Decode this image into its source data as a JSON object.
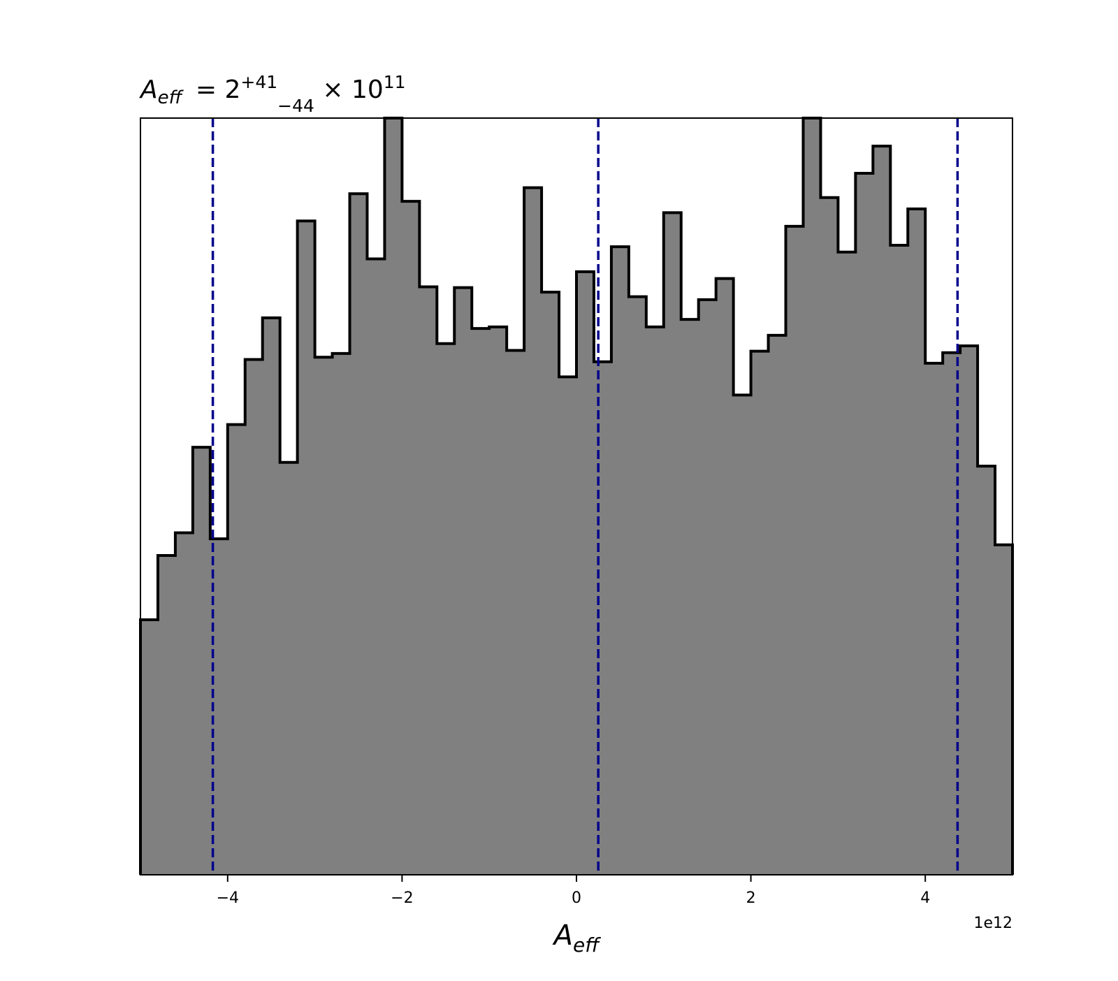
{
  "chart_data": {
    "type": "histogram",
    "title": {
      "symbol": "A",
      "symbol_sub": "eff",
      "equals": " = 2",
      "sup": "+41",
      "sub": "−44",
      "times": " × 10",
      "exp": "11"
    },
    "xlabel": {
      "symbol": "A",
      "sub": "eff"
    },
    "ylabel": "",
    "x_offset_label": "1e12",
    "x_scale": 1000000000000.0,
    "xlim": [
      -5.0,
      5.0
    ],
    "ylim": [
      0,
      1
    ],
    "x_ticks": [
      -4,
      -2,
      0,
      2,
      4
    ],
    "x_tick_labels": [
      "−4",
      "−2",
      "0",
      "2",
      "4"
    ],
    "y_ticks_visible": false,
    "bin_edges": [
      -5.0,
      -4.8,
      -4.6,
      -4.4,
      -4.2,
      -4.0,
      -3.8,
      -3.6,
      -3.4,
      -3.2,
      -3.0,
      -2.8,
      -2.6,
      -2.4,
      -2.2,
      -2.0,
      -1.8,
      -1.6,
      -1.4,
      -1.2,
      -1.0,
      -0.8,
      -0.6,
      -0.4,
      -0.2,
      0.0,
      0.2,
      0.4,
      0.6,
      0.8,
      1.0,
      1.2,
      1.4,
      1.6,
      1.8,
      2.0,
      2.2,
      2.4,
      2.6,
      2.8,
      3.0,
      3.2,
      3.4,
      3.6,
      3.8,
      4.0,
      4.2,
      4.4,
      4.6,
      4.8,
      5.0
    ],
    "counts": [
      0.337,
      0.422,
      0.452,
      0.565,
      0.444,
      0.595,
      0.681,
      0.736,
      0.545,
      0.864,
      0.684,
      0.689,
      0.9,
      0.814,
      1.0,
      0.89,
      0.777,
      0.702,
      0.776,
      0.722,
      0.724,
      0.693,
      0.908,
      0.77,
      0.658,
      0.797,
      0.678,
      0.83,
      0.764,
      0.724,
      0.875,
      0.734,
      0.76,
      0.788,
      0.634,
      0.692,
      0.713,
      0.857,
      1.0,
      0.895,
      0.823,
      0.927,
      0.963,
      0.832,
      0.88,
      0.676,
      0.69,
      0.699,
      0.54,
      0.436
    ],
    "quantile_lines": [
      -4.17,
      0.25,
      4.37
    ],
    "colors": {
      "fill": "#808080",
      "edge": "#000000",
      "quantile": "#00008b",
      "background": "#ffffff"
    }
  }
}
